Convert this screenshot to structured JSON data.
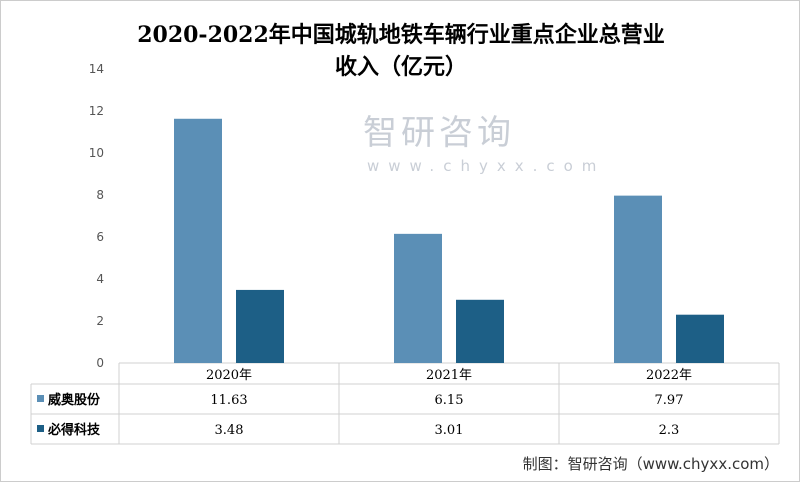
{
  "chart_data": {
    "type": "bar",
    "title": "2020-2022年中国城轨地铁车辆行业重点企业总营业收入（亿元）",
    "title_lines": [
      "2020-2022年中国城轨地铁车辆行业重点企业总营业",
      "收入（亿元）"
    ],
    "categories": [
      "2020年",
      "2021年",
      "2022年"
    ],
    "series": [
      {
        "name": "威奥股份",
        "values": [
          11.63,
          6.15,
          7.97
        ],
        "labels": [
          "11.63",
          "6.15",
          "7.97"
        ],
        "color": "#5b8fb6"
      },
      {
        "name": "必得科技",
        "values": [
          3.48,
          3.01,
          2.3
        ],
        "labels": [
          "3.48",
          "3.01",
          "2.3"
        ],
        "color": "#1d5f86"
      }
    ],
    "ylim": [
      0,
      14
    ],
    "yticks": [
      "0",
      "2",
      "4",
      "6",
      "8",
      "10",
      "12",
      "14"
    ],
    "grid": false,
    "legend": "data-table"
  },
  "watermark": {
    "name": "智研咨询",
    "url": "www.chyxx.com"
  },
  "source": "制图：智研咨询（www.chyxx.com）"
}
